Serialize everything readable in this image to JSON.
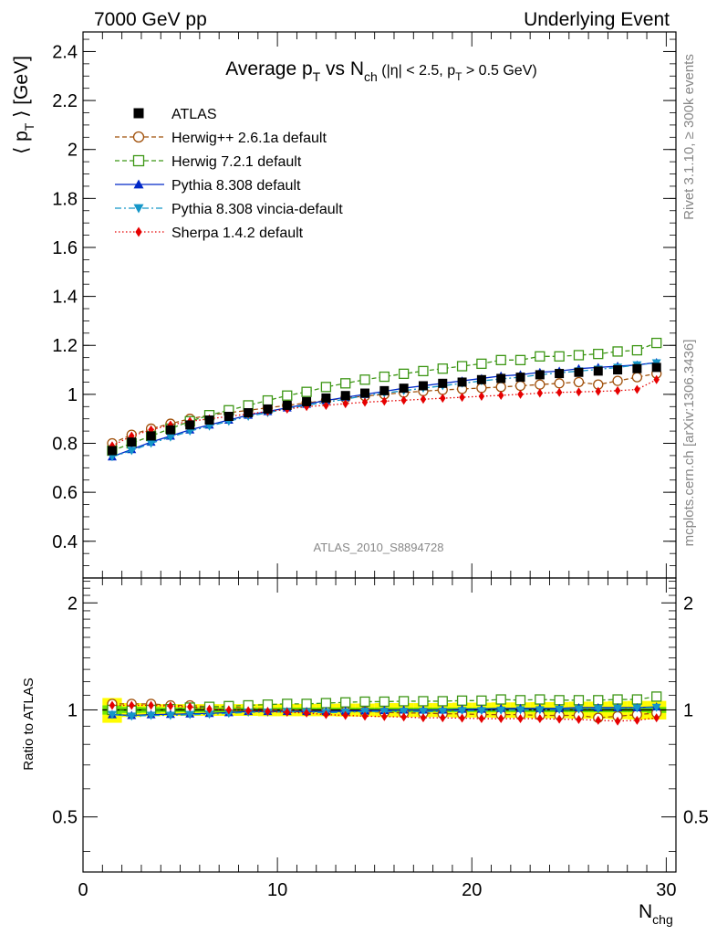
{
  "header": {
    "left": "7000 GeV pp",
    "right": "Underlying Event"
  },
  "side": {
    "rivet": "Rivet 3.1.10, ≥ 300k events",
    "mcplots": "mcplots.cern.ch [arXiv:1306.3436]"
  },
  "title": {
    "main": "Average p",
    "main_sub": "T",
    "vs": " vs N",
    "vs_sub": "ch",
    "cuts1": " (|η| < 2.5, p",
    "cuts_sub": "T",
    "cuts2": " > 0.5 GeV)"
  },
  "analysis_tag": "ATLAS_2010_S8894728",
  "axes": {
    "ylabel_main": "⟨ p",
    "ylabel_sub": "T",
    "ylabel_rest": " ⟩ [GeV]",
    "ylabel_ratio": "Ratio to ATLAS",
    "xlabel_main": "N",
    "xlabel_sub": "chg"
  },
  "colors": {
    "atlas": "#000000",
    "herwigpp": "#a0500a",
    "herwig7": "#3c9614",
    "pythia": "#0028c8",
    "vincia": "#1496c8",
    "sherpa": "#e60000",
    "band_inner": "#00d800",
    "band_outer": "#fffc00"
  },
  "chart_data": [
    {
      "type": "line",
      "panel": "main",
      "xlim": [
        0,
        30.5
      ],
      "ylim": [
        0.25,
        2.48
      ],
      "xticks": [
        0,
        10,
        20,
        30
      ],
      "xtick_labels": [
        "0",
        "10",
        "20",
        "30"
      ],
      "yticks": [
        0.4,
        0.6,
        0.8,
        1,
        1.2,
        1.4,
        1.6,
        1.8,
        2,
        2.2,
        2.4
      ],
      "ytick_labels": [
        "0.4",
        "0.6",
        "0.8",
        "1",
        "1.2",
        "1.4",
        "1.6",
        "1.8",
        "2",
        "2.2",
        "2.4"
      ],
      "legend_position": "top-left",
      "x": [
        1.5,
        2.5,
        3.5,
        4.5,
        5.5,
        6.5,
        7.5,
        8.5,
        9.5,
        10.5,
        11.5,
        12.5,
        13.5,
        14.5,
        15.5,
        16.5,
        17.5,
        18.5,
        19.5,
        20.5,
        21.5,
        22.5,
        23.5,
        24.5,
        25.5,
        26.5,
        27.5,
        28.5,
        29.5
      ],
      "series": [
        {
          "name": "ATLAS",
          "key": "atlas",
          "marker": "square-filled",
          "line": "none",
          "values": [
            0.77,
            0.805,
            0.83,
            0.855,
            0.875,
            0.895,
            0.91,
            0.925,
            0.94,
            0.955,
            0.97,
            0.985,
            0.995,
            1.005,
            1.015,
            1.025,
            1.035,
            1.045,
            1.05,
            1.06,
            1.065,
            1.07,
            1.08,
            1.085,
            1.09,
            1.095,
            1.1,
            1.105,
            1.11
          ]
        },
        {
          "name": "Herwig++ 2.6.1a default",
          "key": "herwigpp",
          "marker": "circle-open",
          "line": "dashed",
          "values": [
            0.8,
            0.835,
            0.86,
            0.88,
            0.9,
            0.915,
            0.925,
            0.935,
            0.945,
            0.955,
            0.965,
            0.975,
            0.985,
            0.993,
            1.0,
            1.007,
            1.013,
            1.018,
            1.022,
            1.026,
            1.03,
            1.035,
            1.04,
            1.045,
            1.05,
            1.04,
            1.055,
            1.07,
            1.085
          ]
        },
        {
          "name": "Herwig 7.2.1 default",
          "key": "herwig7",
          "marker": "square-open",
          "line": "dashed",
          "values": [
            0.77,
            0.8,
            0.83,
            0.86,
            0.89,
            0.915,
            0.935,
            0.955,
            0.975,
            0.995,
            1.01,
            1.03,
            1.045,
            1.06,
            1.072,
            1.084,
            1.095,
            1.105,
            1.115,
            1.125,
            1.14,
            1.14,
            1.155,
            1.155,
            1.16,
            1.165,
            1.175,
            1.18,
            1.21
          ]
        },
        {
          "name": "Pythia 8.308 default",
          "key": "pythia",
          "marker": "triangle-up",
          "line": "solid",
          "values": [
            0.745,
            0.775,
            0.805,
            0.83,
            0.855,
            0.875,
            0.895,
            0.915,
            0.93,
            0.945,
            0.96,
            0.975,
            0.988,
            1.0,
            1.012,
            1.025,
            1.035,
            1.045,
            1.055,
            1.065,
            1.075,
            1.08,
            1.09,
            1.095,
            1.105,
            1.11,
            1.115,
            1.12,
            1.13
          ]
        },
        {
          "name": "Pythia 8.308 vincia-default",
          "key": "vincia",
          "marker": "triangle-down",
          "line": "dashdot",
          "values": [
            0.745,
            0.77,
            0.8,
            0.825,
            0.85,
            0.87,
            0.89,
            0.91,
            0.925,
            0.942,
            0.955,
            0.968,
            0.98,
            0.995,
            1.005,
            1.015,
            1.025,
            1.035,
            1.045,
            1.055,
            1.063,
            1.07,
            1.08,
            1.088,
            1.095,
            1.102,
            1.11,
            1.12,
            1.128
          ]
        },
        {
          "name": "Sherpa 1.4.2 default",
          "key": "sherpa",
          "marker": "diamond",
          "line": "dotted",
          "values": [
            0.79,
            0.83,
            0.855,
            0.875,
            0.89,
            0.9,
            0.91,
            0.92,
            0.93,
            0.94,
            0.95,
            0.955,
            0.962,
            0.968,
            0.972,
            0.976,
            0.98,
            0.984,
            0.988,
            0.992,
            0.996,
            1.0,
            1.005,
            1.008,
            1.01,
            1.012,
            1.015,
            1.02,
            1.06
          ]
        }
      ]
    },
    {
      "type": "line",
      "panel": "ratio",
      "xlim": [
        0,
        30.5
      ],
      "ylim": [
        0.35,
        2.35
      ],
      "scale_y": "log",
      "yticks": [
        0.5,
        1,
        2
      ],
      "ytick_labels": [
        "0.5",
        "1",
        "2"
      ],
      "x": [
        1.5,
        2.5,
        3.5,
        4.5,
        5.5,
        6.5,
        7.5,
        8.5,
        9.5,
        10.5,
        11.5,
        12.5,
        13.5,
        14.5,
        15.5,
        16.5,
        17.5,
        18.5,
        19.5,
        20.5,
        21.5,
        22.5,
        23.5,
        24.5,
        25.5,
        26.5,
        27.5,
        28.5,
        29.5
      ],
      "band_inner": [
        0.03,
        0.02,
        0.018,
        0.015,
        0.015,
        0.015,
        0.015,
        0.015,
        0.015,
        0.015,
        0.015,
        0.015,
        0.015,
        0.015,
        0.015,
        0.015,
        0.015,
        0.015,
        0.015,
        0.015,
        0.015,
        0.015,
        0.015,
        0.015,
        0.015,
        0.015,
        0.015,
        0.015,
        0.02
      ],
      "band_outer": [
        0.08,
        0.045,
        0.04,
        0.038,
        0.038,
        0.038,
        0.038,
        0.038,
        0.04,
        0.04,
        0.04,
        0.04,
        0.042,
        0.042,
        0.045,
        0.045,
        0.045,
        0.045,
        0.048,
        0.048,
        0.05,
        0.05,
        0.052,
        0.052,
        0.055,
        0.055,
        0.058,
        0.06,
        0.06
      ],
      "series": [
        {
          "name": "Herwig++ 2.6.1a default",
          "key": "herwigpp",
          "values": [
            1.04,
            1.04,
            1.04,
            1.03,
            1.03,
            1.02,
            1.02,
            1.01,
            1.005,
            1.0,
            0.995,
            0.99,
            0.99,
            0.99,
            0.985,
            0.98,
            0.98,
            0.975,
            0.975,
            0.97,
            0.97,
            0.97,
            0.965,
            0.965,
            0.965,
            0.95,
            0.96,
            0.97,
            0.98
          ]
        },
        {
          "name": "Herwig 7.2.1 default",
          "key": "herwig7",
          "values": [
            1.0,
            0.995,
            1.0,
            1.005,
            1.015,
            1.02,
            1.025,
            1.03,
            1.035,
            1.04,
            1.04,
            1.045,
            1.05,
            1.055,
            1.055,
            1.058,
            1.058,
            1.058,
            1.062,
            1.062,
            1.07,
            1.065,
            1.07,
            1.065,
            1.065,
            1.065,
            1.07,
            1.07,
            1.09
          ]
        },
        {
          "name": "Pythia 8.308 default",
          "key": "pythia",
          "values": [
            0.97,
            0.965,
            0.97,
            0.972,
            0.975,
            0.978,
            0.983,
            0.99,
            0.99,
            0.99,
            0.99,
            0.99,
            0.993,
            0.995,
            0.997,
            1.0,
            1.0,
            1.0,
            1.005,
            1.005,
            1.01,
            1.01,
            1.01,
            1.01,
            1.015,
            1.015,
            1.015,
            1.015,
            1.02
          ]
        },
        {
          "name": "Pythia 8.308 vincia-default",
          "key": "vincia",
          "values": [
            0.97,
            0.96,
            0.965,
            0.965,
            0.97,
            0.972,
            0.978,
            0.985,
            0.985,
            0.988,
            0.985,
            0.983,
            0.985,
            0.99,
            0.99,
            0.99,
            0.99,
            0.99,
            0.995,
            0.995,
            0.998,
            1.0,
            1.0,
            1.003,
            1.005,
            1.007,
            1.01,
            1.012,
            1.016
          ]
        },
        {
          "name": "Sherpa 1.4.2 default",
          "key": "sherpa",
          "values": [
            1.03,
            1.03,
            1.03,
            1.025,
            1.02,
            1.005,
            1.0,
            0.995,
            0.99,
            0.985,
            0.98,
            0.97,
            0.965,
            0.96,
            0.958,
            0.955,
            0.95,
            0.95,
            0.948,
            0.945,
            0.945,
            0.945,
            0.945,
            0.942,
            0.94,
            0.935,
            0.93,
            0.935,
            0.95
          ]
        }
      ]
    }
  ]
}
